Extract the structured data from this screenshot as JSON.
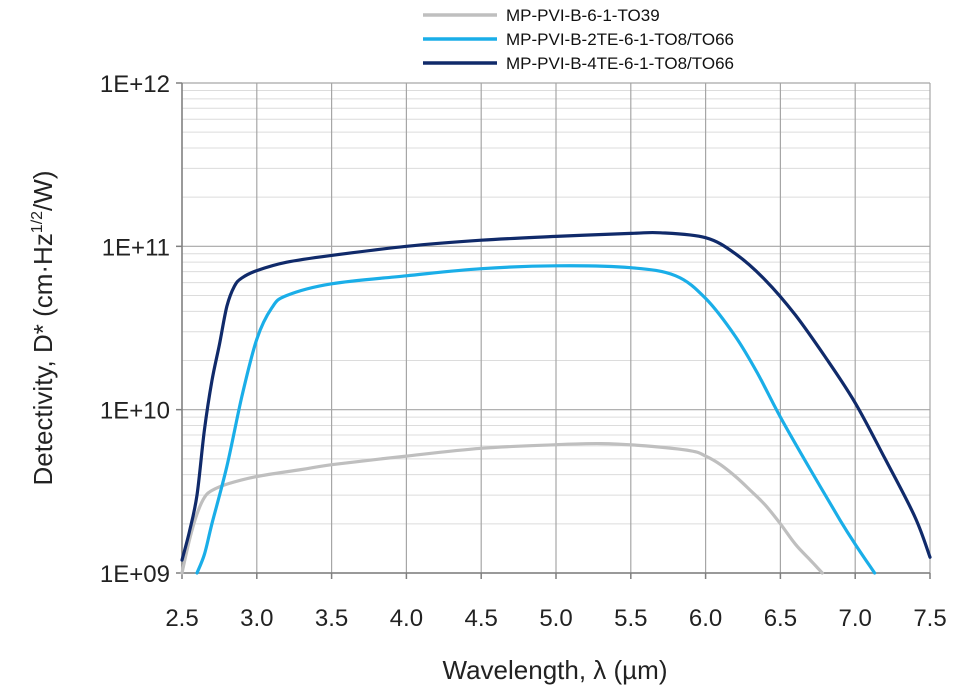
{
  "chart_data": {
    "type": "line",
    "xlabel": "Wavelength, λ (µm)",
    "ylabel": {
      "main": "Detectivity, D* (cm·Hz",
      "sup": "1/2",
      "end": "/W)"
    },
    "y_scale": "log",
    "xlim": [
      2.5,
      7.5
    ],
    "ylim": [
      1000000000.0,
      1000000000000.0
    ],
    "x_ticks": [
      2.5,
      3.0,
      3.5,
      4.0,
      4.5,
      5.0,
      5.5,
      6.0,
      6.5,
      7.0,
      7.5
    ],
    "x_tick_labels": [
      "2.5",
      "3.0",
      "3.5",
      "4.0",
      "4.5",
      "5.0",
      "5.5",
      "6.0",
      "6.5",
      "7.0",
      "7.5"
    ],
    "y_ticks": [
      1000000000.0,
      10000000000.0,
      100000000000.0,
      1000000000000.0
    ],
    "y_tick_labels": [
      "1E+09",
      "1E+10",
      "1E+11",
      "1E+12"
    ],
    "grid": true,
    "legend_position": "top",
    "series": [
      {
        "name": "MP-PVI-B-6-1-TO39",
        "color": "#bfbfbf",
        "points": [
          [
            2.5,
            1000000000.0
          ],
          [
            2.55,
            1600000000.0
          ],
          [
            2.6,
            2300000000.0
          ],
          [
            2.65,
            2900000000.0
          ],
          [
            2.7,
            3200000000.0
          ],
          [
            2.8,
            3500000000.0
          ],
          [
            3.0,
            3900000000.0
          ],
          [
            3.3,
            4300000000.0
          ],
          [
            3.5,
            4600000000.0
          ],
          [
            4.0,
            5200000000.0
          ],
          [
            4.5,
            5800000000.0
          ],
          [
            5.0,
            6100000000.0
          ],
          [
            5.3,
            6200000000.0
          ],
          [
            5.6,
            6000000000.0
          ],
          [
            5.9,
            5600000000.0
          ],
          [
            6.0,
            5200000000.0
          ],
          [
            6.1,
            4600000000.0
          ],
          [
            6.2,
            3900000000.0
          ],
          [
            6.3,
            3200000000.0
          ],
          [
            6.4,
            2600000000.0
          ],
          [
            6.5,
            2000000000.0
          ],
          [
            6.6,
            1500000000.0
          ],
          [
            6.7,
            1200000000.0
          ],
          [
            6.78,
            1000000000.0
          ]
        ]
      },
      {
        "name": "MP-PVI-B-2TE-6-1-TO8/TO66",
        "color": "#1aaee8",
        "points": [
          [
            2.6,
            1000000000.0
          ],
          [
            2.65,
            1300000000.0
          ],
          [
            2.7,
            2000000000.0
          ],
          [
            2.8,
            4500000000.0
          ],
          [
            2.9,
            12000000000.0
          ],
          [
            3.0,
            27000000000.0
          ],
          [
            3.1,
            42000000000.0
          ],
          [
            3.2,
            50000000000.0
          ],
          [
            3.5,
            59000000000.0
          ],
          [
            4.0,
            66000000000.0
          ],
          [
            4.5,
            73000000000.0
          ],
          [
            5.0,
            76000000000.0
          ],
          [
            5.5,
            74000000000.0
          ],
          [
            5.8,
            66000000000.0
          ],
          [
            6.0,
            48000000000.0
          ],
          [
            6.2,
            28000000000.0
          ],
          [
            6.35,
            16500000000.0
          ],
          [
            6.5,
            9000000000.0
          ],
          [
            6.7,
            4300000000.0
          ],
          [
            6.9,
            2100000000.0
          ],
          [
            7.0,
            1500000000.0
          ],
          [
            7.13,
            1000000000.0
          ]
        ]
      },
      {
        "name": "MP-PVI-B-4TE-6-1-TO8/TO66",
        "color": "#102a6a",
        "points": [
          [
            2.5,
            1200000000.0
          ],
          [
            2.55,
            1800000000.0
          ],
          [
            2.6,
            3000000000.0
          ],
          [
            2.65,
            7500000000.0
          ],
          [
            2.7,
            15000000000.0
          ],
          [
            2.75,
            25000000000.0
          ],
          [
            2.8,
            43000000000.0
          ],
          [
            2.85,
            57000000000.0
          ],
          [
            2.9,
            64000000000.0
          ],
          [
            3.0,
            71000000000.0
          ],
          [
            3.2,
            80000000000.0
          ],
          [
            3.5,
            88000000000.0
          ],
          [
            4.0,
            100000000000.0
          ],
          [
            4.5,
            109000000000.0
          ],
          [
            5.0,
            115000000000.0
          ],
          [
            5.5,
            120000000000.0
          ],
          [
            5.7,
            121000000000.0
          ],
          [
            6.0,
            113000000000.0
          ],
          [
            6.2,
            90000000000.0
          ],
          [
            6.4,
            62000000000.0
          ],
          [
            6.6,
            38000000000.0
          ],
          [
            6.8,
            21000000000.0
          ],
          [
            7.0,
            11000000000.0
          ],
          [
            7.2,
            5000000000.0
          ],
          [
            7.4,
            2200000000.0
          ],
          [
            7.5,
            1250000000.0
          ]
        ]
      }
    ]
  }
}
